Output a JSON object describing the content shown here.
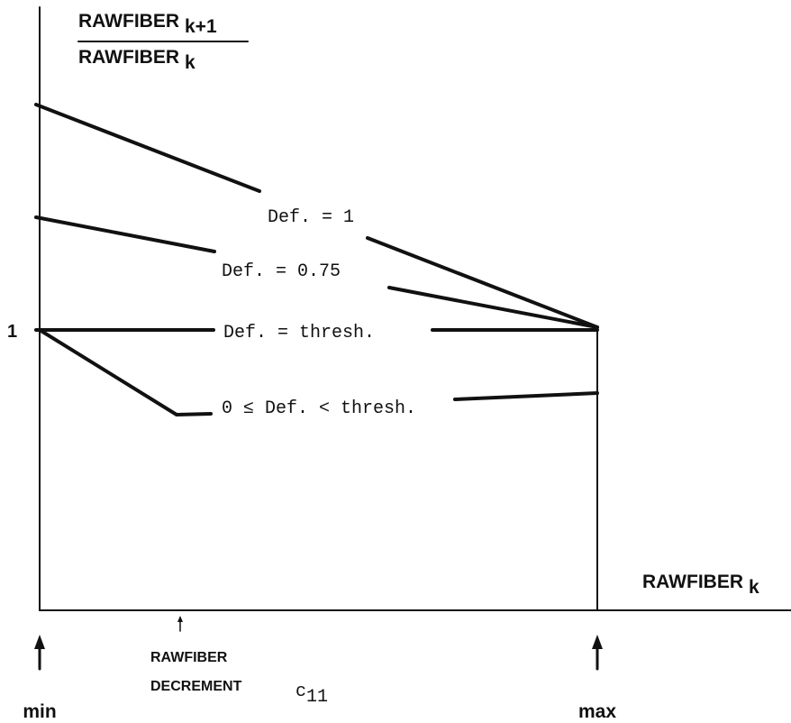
{
  "y_axis": {
    "numerator": {
      "text": "RAWFIBER",
      "subscript": "k+1"
    },
    "denominator": {
      "text": "RAWFIBER",
      "subscript": "k"
    },
    "tick": "1"
  },
  "x_axis": {
    "label": {
      "text": "RAWFIBER",
      "subscript": "k"
    }
  },
  "curves": [
    {
      "label": "Def. = 1"
    },
    {
      "label": "Def. = 0.75"
    },
    {
      "label": "Def. = thresh."
    },
    {
      "label": "0 ≤ Def. < thresh."
    }
  ],
  "markers": {
    "min": "min",
    "max": "max",
    "decrement": {
      "lines": [
        "RAWFIBER",
        "DECREMENT"
      ],
      "symbol": {
        "text": "c",
        "subscript": "11"
      }
    }
  }
}
